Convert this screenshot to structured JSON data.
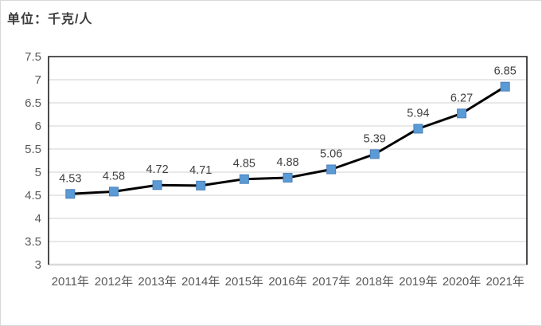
{
  "page": {
    "background": "#ffffff",
    "outer_border_color": "#d8d8d8"
  },
  "unit_label": "单位：千克/人",
  "chart_data": {
    "type": "line",
    "title": "单位：千克/人",
    "xlabel": "",
    "ylabel": "",
    "categories": [
      "2011年",
      "2012年",
      "2013年",
      "2014年",
      "2015年",
      "2016年",
      "2017年",
      "2018年",
      "2019年",
      "2020年",
      "2021年"
    ],
    "values": [
      4.53,
      4.58,
      4.72,
      4.71,
      4.85,
      4.88,
      5.06,
      5.39,
      5.94,
      6.27,
      6.85
    ],
    "data_labels": [
      "4.53",
      "4.58",
      "4.72",
      "4.71",
      "4.85",
      "4.88",
      "5.06",
      "5.39",
      "5.94",
      "6.27",
      "6.85"
    ],
    "ylim": [
      3,
      7.5
    ],
    "y_ticks": [
      "3",
      "3.5",
      "4",
      "4.5",
      "5",
      "5.5",
      "6",
      "6.5",
      "7",
      "7.5"
    ],
    "grid": true,
    "legend": "none",
    "colors": {
      "line": "#000000",
      "marker_fill": "#5b9bd5",
      "marker_border": "#4a7ebb",
      "gridline": "#d9d9d9",
      "bottom_axis": "#d9d9d9",
      "plot_border": "#1f1f1f",
      "axis_tick_text": "#595959",
      "data_label_text": "#404040",
      "title_text": "#3b3b3b"
    }
  }
}
